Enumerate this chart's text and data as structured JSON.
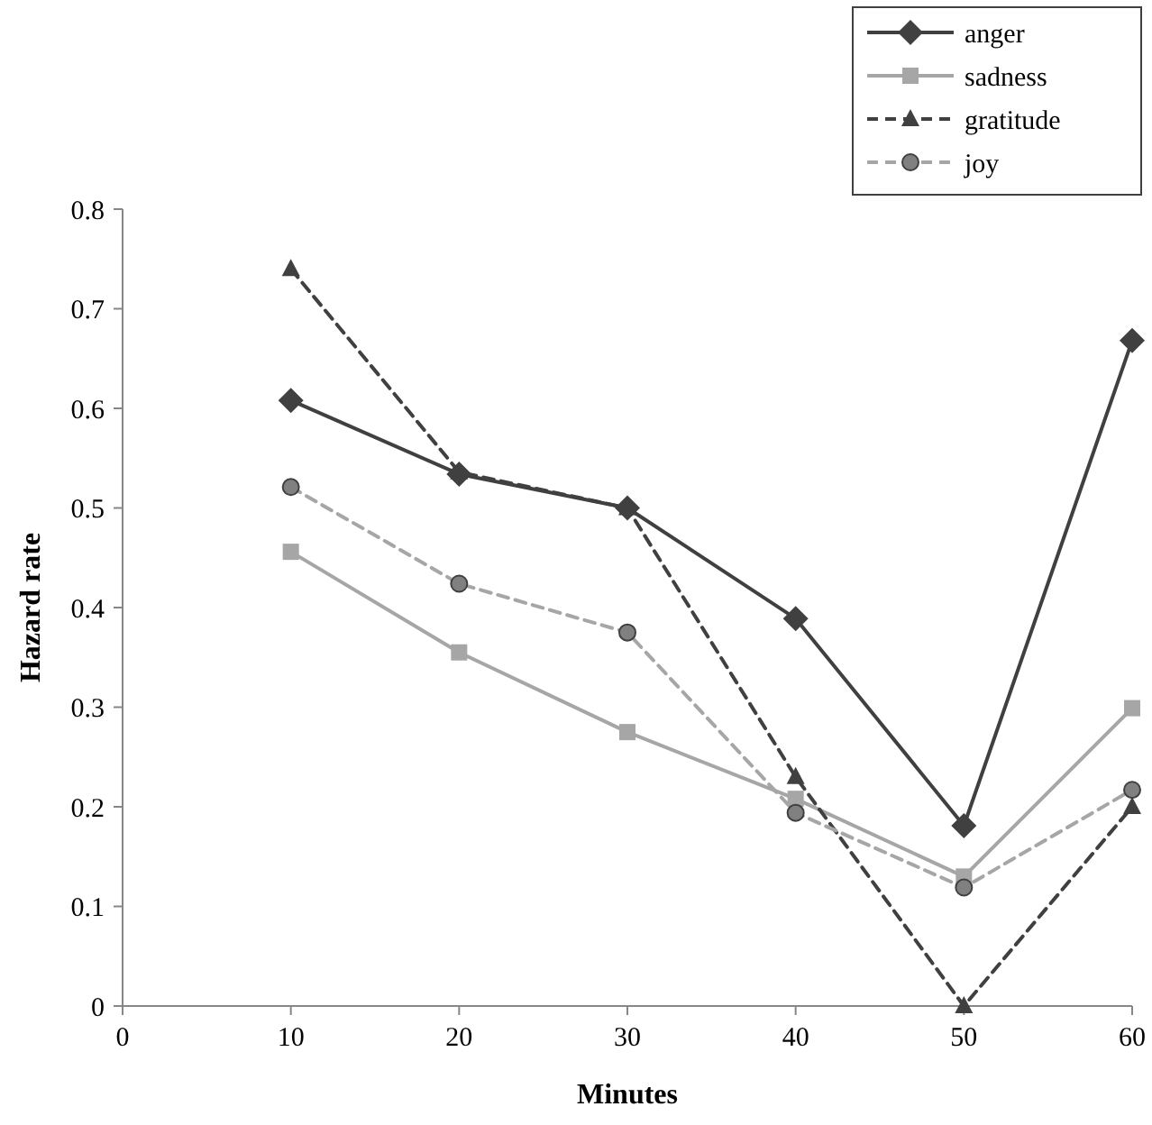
{
  "chart_data": {
    "type": "line",
    "xlabel": "Minutes",
    "ylabel": "Hazard rate",
    "x": [
      10,
      20,
      30,
      40,
      50,
      60
    ],
    "xlim": [
      0,
      60
    ],
    "xticks": [
      0,
      10,
      20,
      30,
      40,
      50,
      60
    ],
    "ylim": [
      0,
      0.8
    ],
    "yticks": [
      0,
      0.1,
      0.2,
      0.3,
      0.4,
      0.5,
      0.6,
      0.7,
      0.8
    ],
    "grid": false,
    "legend": "top right",
    "series": [
      {
        "name": "anger",
        "color": "#404040",
        "marker": "diamond",
        "line_style": "solid",
        "values": [
          0.608,
          0.534,
          0.5,
          0.389,
          0.181,
          0.668
        ]
      },
      {
        "name": "sadness",
        "color": "#a6a6a6",
        "marker": "square",
        "line_style": "solid",
        "values": [
          0.456,
          0.355,
          0.275,
          0.208,
          0.13,
          0.299
        ]
      },
      {
        "name": "gratitude",
        "color": "#404040",
        "marker": "triangle",
        "line_style": "dashed",
        "values": [
          0.74,
          0.536,
          0.5,
          0.23,
          0,
          0.2
        ]
      },
      {
        "name": "joy",
        "color": "#a6a6a6",
        "marker": "circle",
        "line_style": "dashed",
        "values": [
          0.521,
          0.424,
          0.375,
          0.194,
          0.119,
          0.217
        ]
      }
    ]
  }
}
